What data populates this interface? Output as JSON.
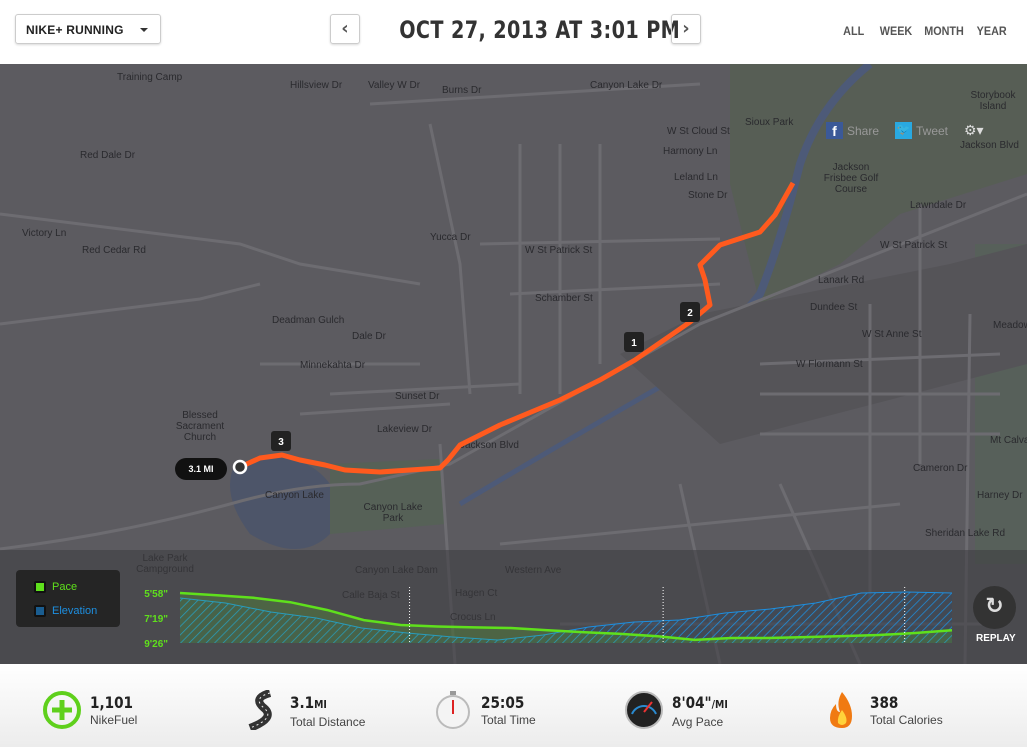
{
  "header": {
    "app_selector": "NIKE+ RUNNING",
    "title": "OCT 27, 2013 AT 3:01 PM",
    "prev": "‹",
    "next": "›",
    "ranges": [
      "ALL",
      "WEEK",
      "MONTH",
      "YEAR"
    ]
  },
  "map": {
    "share_label": "Share",
    "tweet_label": "Tweet",
    "labels": [
      {
        "t": "Training Camp"
      },
      {
        "t": "Hillsview Dr"
      },
      {
        "t": "Valley W Dr"
      },
      {
        "t": "Burns Dr"
      },
      {
        "t": "Canyon Lake Dr"
      },
      {
        "t": "W St Cloud St"
      },
      {
        "t": "Sioux Park"
      },
      {
        "t": "Storybook Island"
      },
      {
        "t": "Red Dale Dr"
      },
      {
        "t": "Harmony Ln"
      },
      {
        "t": "Jackson Frisbee Golf Course"
      },
      {
        "t": "Leland Ln"
      },
      {
        "t": "Stone Dr"
      },
      {
        "t": "Jackson Blvd"
      },
      {
        "t": "Victory Ln"
      },
      {
        "t": "Red Cedar Rd"
      },
      {
        "t": "Yucca Dr"
      },
      {
        "t": "W St Patrick St"
      },
      {
        "t": "W St Patrick St "
      },
      {
        "t": "Lawndale Dr"
      },
      {
        "t": "Schamber St"
      },
      {
        "t": "Lanark Rd"
      },
      {
        "t": "Dundee St"
      },
      {
        "t": "Deadman Gulch"
      },
      {
        "t": "Dale Dr"
      },
      {
        "t": "W St Anne St"
      },
      {
        "t": "Minnekahta Dr"
      },
      {
        "t": "W Flormann St"
      },
      {
        "t": "Sunset Dr"
      },
      {
        "t": "Lakeview Dr"
      },
      {
        "t": "Blessed Sacrament Church"
      },
      {
        "t": "Canyon Lake"
      },
      {
        "t": "Canyon Lake Park"
      },
      {
        "t": "Jackson Blvd "
      },
      {
        "t": "Western Ave"
      },
      {
        "t": "Cameron Dr"
      },
      {
        "t": "Harney Dr"
      },
      {
        "t": "Mt Calvary Cem"
      },
      {
        "t": "Meadow View Cem"
      },
      {
        "t": "Sheridan Lake Rd"
      },
      {
        "t": "Lake Park Campground"
      },
      {
        "t": "Canyon Lake Dam"
      },
      {
        "t": "Calle Baja St"
      },
      {
        "t": "Hagen Ct"
      },
      {
        "t": "Crocus Ln"
      }
    ],
    "markers": [
      "1",
      "2",
      "3"
    ],
    "distance_flag": "3.1 MI",
    "route_color": "#ff5a1e"
  },
  "chart_data": {
    "type": "area",
    "x": {
      "label": "",
      "range_mi": [
        0,
        3.1
      ],
      "mile_markers": [
        1,
        2,
        3
      ]
    },
    "y_ticks": [
      "5'58\"",
      "7'19\"",
      "9'26\""
    ],
    "legend": [
      {
        "name": "Pace",
        "color": "#5fe01c"
      },
      {
        "name": "Elevation",
        "color": "#1d8fe0"
      }
    ],
    "series": [
      {
        "name": "Pace",
        "unit": "sec/mi",
        "values": [
          358,
          364,
          371,
          384,
          409,
          447,
          468,
          475,
          479,
          482,
          493,
          503,
          512,
          525,
          546,
          535,
          535,
          530,
          524,
          518,
          507,
          493
        ]
      },
      {
        "name": "Elevation",
        "values": [
          45,
          40,
          31,
          25,
          15,
          10,
          6,
          3,
          8,
          16,
          21,
          23,
          30,
          34,
          40,
          50,
          51,
          50
        ]
      }
    ]
  },
  "replay_label": "REPLAY",
  "stats": [
    {
      "value": "1,101",
      "unit": "",
      "label": "NikeFuel",
      "icon": "nikefuel-icon"
    },
    {
      "value": "3.1",
      "unit": "MI",
      "label": "Total Distance",
      "icon": "road-icon"
    },
    {
      "value": "25:05",
      "unit": "",
      "label": "Total Time",
      "icon": "stopwatch-icon"
    },
    {
      "value": "8'04\"",
      "unit": "/MI",
      "label": "Avg Pace",
      "icon": "speedometer-icon"
    },
    {
      "value": "388",
      "unit": "",
      "label": "Total Calories",
      "icon": "flame-icon"
    }
  ]
}
